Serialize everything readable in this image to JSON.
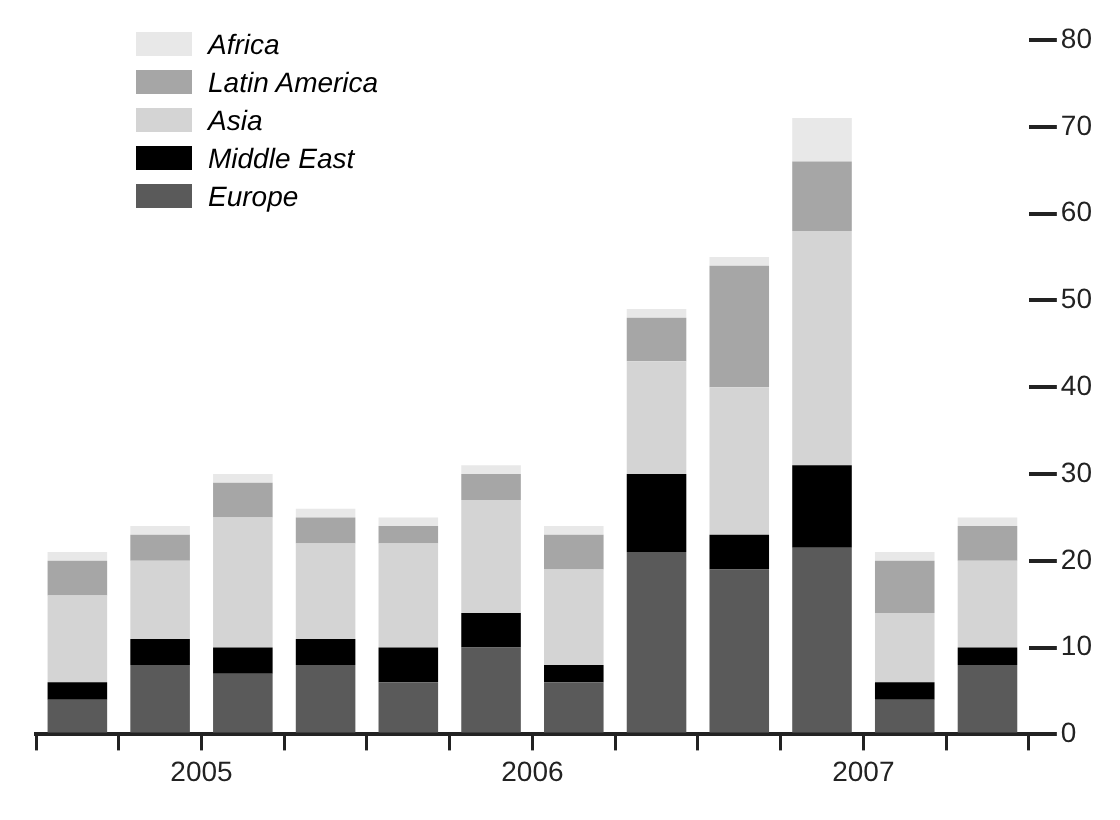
{
  "chart_data": {
    "type": "bar",
    "stacked": true,
    "x": [
      2005.125,
      2005.375,
      2005.625,
      2005.875,
      2006.125,
      2006.375,
      2006.625,
      2006.875,
      2007.125,
      2007.375,
      2007.625,
      2007.875
    ],
    "xlim": [
      2005,
      2008
    ],
    "xticks": [
      {
        "value": 2005,
        "label": null
      },
      {
        "value": 2005.25,
        "label": null
      },
      {
        "value": 2005.5,
        "label": "2005"
      },
      {
        "value": 2005.75,
        "label": null
      },
      {
        "value": 2006,
        "label": null
      },
      {
        "value": 2006.25,
        "label": null
      },
      {
        "value": 2006.5,
        "label": "2006"
      },
      {
        "value": 2006.75,
        "label": null
      },
      {
        "value": 2007,
        "label": null
      },
      {
        "value": 2007.25,
        "label": null
      },
      {
        "value": 2007.5,
        "label": "2007"
      },
      {
        "value": 2007.75,
        "label": null
      },
      {
        "value": 2008,
        "label": null
      }
    ],
    "ylim": [
      0,
      80
    ],
    "yticks": [
      0,
      10,
      20,
      30,
      40,
      50,
      60,
      70,
      80
    ],
    "grid": false,
    "legend": "top left",
    "series": [
      {
        "name": "Europe",
        "color": "#5a5a5a",
        "values": [
          4,
          8,
          7,
          8,
          6,
          10,
          6,
          21,
          19,
          21.5,
          4,
          8
        ]
      },
      {
        "name": "Middle East",
        "color": "#000000",
        "values": [
          2,
          3,
          3,
          3,
          4,
          4,
          2,
          9,
          4,
          9.5,
          2,
          2
        ]
      },
      {
        "name": "Asia",
        "color": "#d4d4d4",
        "values": [
          10,
          9,
          15,
          11,
          12,
          13,
          11,
          13,
          17,
          27,
          8,
          10
        ]
      },
      {
        "name": "Latin America",
        "color": "#a6a6a6",
        "values": [
          4,
          3,
          4,
          3,
          2,
          3,
          4,
          5,
          14,
          8,
          6,
          4
        ]
      },
      {
        "name": "Africa",
        "color": "#e8e8e8",
        "values": [
          1,
          1,
          1,
          1,
          1,
          1,
          1,
          1,
          1,
          5,
          1,
          1
        ]
      }
    ]
  }
}
